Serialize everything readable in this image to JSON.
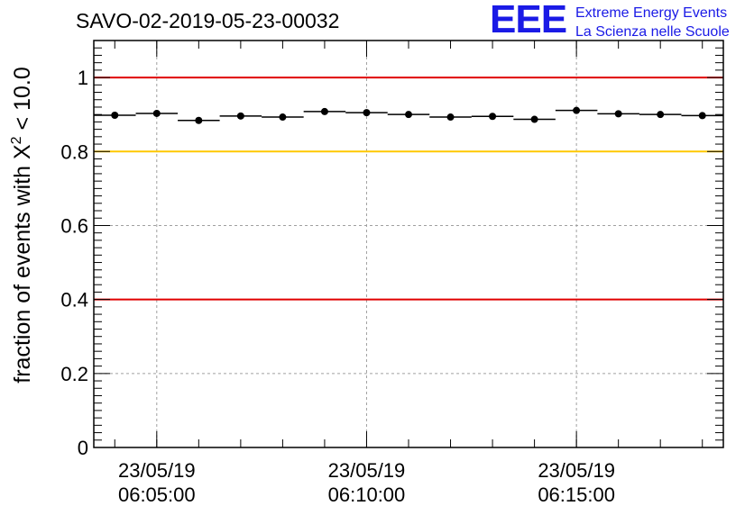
{
  "header": {
    "run_id": "SAVO-02-2019-05-23-00032"
  },
  "logo": {
    "mark": "EEE",
    "line1": "Extreme Energy Events",
    "line2": "La Scienza nelle Scuole",
    "color": "#1a1ae6"
  },
  "chart_data": {
    "type": "scatter",
    "title": "SAVO-02-2019-05-23-00032",
    "ylabel_prefix": "fraction of events with X",
    "ylabel_superscript": "2",
    "ylabel_suffix": " < 10.0",
    "xlabel": "",
    "ylim": [
      0,
      1.1
    ],
    "xlim_minutes": [
      0,
      15
    ],
    "yticks": [
      {
        "value": 0,
        "label": "0"
      },
      {
        "value": 0.2,
        "label": "0.2"
      },
      {
        "value": 0.4,
        "label": "0.4"
      },
      {
        "value": 0.6,
        "label": "0.6"
      },
      {
        "value": 0.8,
        "label": "0.8"
      },
      {
        "value": 1,
        "label": "1"
      }
    ],
    "xticks": [
      {
        "minute": 1.5,
        "date": "23/05/19",
        "time": "06:05:00"
      },
      {
        "minute": 6.5,
        "date": "23/05/19",
        "time": "06:10:00"
      },
      {
        "minute": 11.5,
        "date": "23/05/19",
        "time": "06:15:00"
      }
    ],
    "x_minor_tick_minutes": [
      0.5,
      1.5,
      2.5,
      3.5,
      4.5,
      5.5,
      6.5,
      7.5,
      8.5,
      9.5,
      10.5,
      11.5,
      12.5,
      13.5,
      14.5
    ],
    "reference_lines": [
      {
        "y": 1.0,
        "color": "#e00000"
      },
      {
        "y": 0.8,
        "color": "#ffc800"
      },
      {
        "y": 0.4,
        "color": "#e00000"
      }
    ],
    "bin_width_minutes": 1,
    "series": [
      {
        "name": "fraction",
        "x": [
          0.5,
          1.5,
          2.5,
          3.5,
          4.5,
          5.5,
          6.5,
          7.5,
          8.5,
          9.5,
          10.5,
          11.5,
          12.5,
          13.5,
          14.5
        ],
        "values": [
          0.898,
          0.903,
          0.884,
          0.896,
          0.893,
          0.908,
          0.905,
          0.9,
          0.893,
          0.895,
          0.887,
          0.911,
          0.902,
          0.9,
          0.897
        ]
      }
    ],
    "grid": true,
    "line_colors": {
      "axis": "#000000",
      "grid": "#a0a0a0",
      "marker": "#000000"
    }
  }
}
